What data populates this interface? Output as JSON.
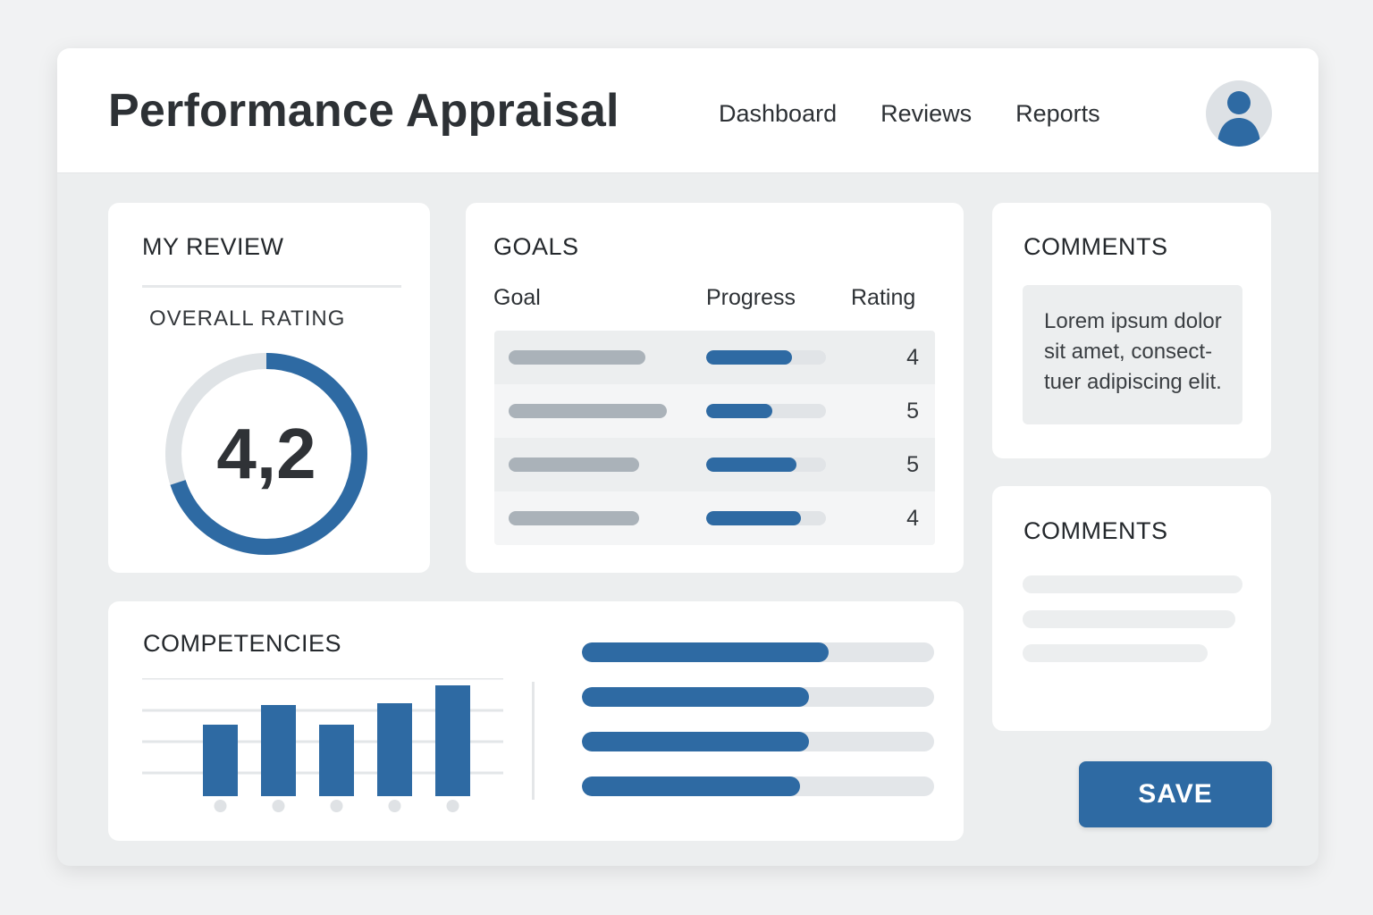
{
  "header": {
    "title": "Performance Appraisal",
    "nav": [
      "Dashboard",
      "Reviews",
      "Reports"
    ],
    "avatar_icon": "user-avatar-icon"
  },
  "my_review": {
    "title": "MY REVIEW",
    "overall_label": "OVERALL RATING",
    "overall_value": "4,2",
    "gauge_fraction": 0.7
  },
  "goals": {
    "title": "GOALS",
    "columns": [
      "Goal",
      "Progress",
      "Rating"
    ],
    "rows": [
      {
        "progress": 0.72,
        "rating": "4"
      },
      {
        "progress": 0.55,
        "rating": "5"
      },
      {
        "progress": 0.75,
        "rating": "5"
      },
      {
        "progress": 0.79,
        "rating": "4"
      }
    ]
  },
  "comments": [
    {
      "title": "COMMENTS",
      "text": "Lorem ipsum dolor sit amet, consect-tuer adipiscing elit."
    },
    {
      "title": "COMMENTS"
    }
  ],
  "competencies": {
    "title": "COMPETENCIES",
    "progress_bars": [
      0.7,
      0.645,
      0.645,
      0.62
    ]
  },
  "chart_data": {
    "type": "bar",
    "categories": [
      "",
      "",
      "",
      "",
      ""
    ],
    "values": [
      2,
      2.55,
      2,
      2.6,
      3.1
    ],
    "ylim": [
      0,
      3.3
    ],
    "grid": true
  },
  "actions": {
    "save_label": "SAVE"
  },
  "colors": {
    "accent": "#2e6aa3",
    "track": "#dde1e5",
    "background": "#eceeef"
  }
}
